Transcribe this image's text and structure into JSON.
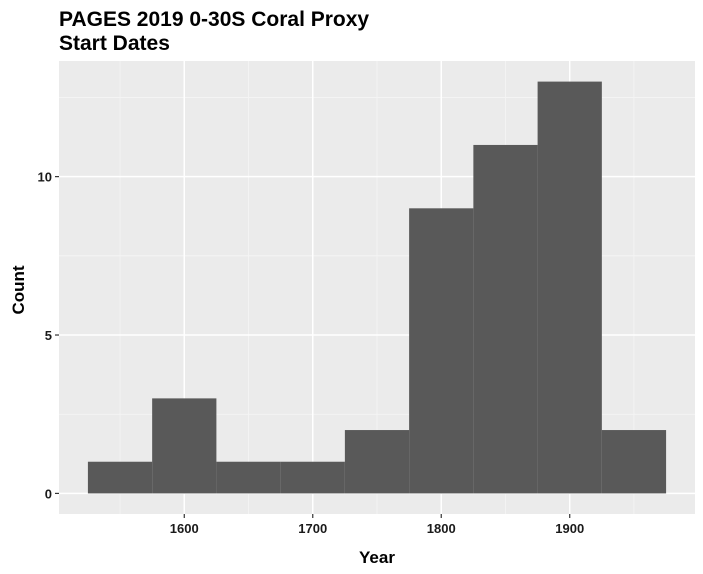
{
  "chart_data": {
    "type": "bar",
    "title": "PAGES 2019 0-30S Coral Proxy\nStart Dates",
    "xlabel": "Year",
    "ylabel": "Count",
    "bins": [
      {
        "start": 1525,
        "end": 1575,
        "count": 1
      },
      {
        "start": 1575,
        "end": 1625,
        "count": 3
      },
      {
        "start": 1625,
        "end": 1675,
        "count": 1
      },
      {
        "start": 1675,
        "end": 1725,
        "count": 1
      },
      {
        "start": 1725,
        "end": 1775,
        "count": 2
      },
      {
        "start": 1775,
        "end": 1825,
        "count": 9
      },
      {
        "start": 1825,
        "end": 1875,
        "count": 11
      },
      {
        "start": 1875,
        "end": 1925,
        "count": 13
      },
      {
        "start": 1925,
        "end": 1975,
        "count": 2
      }
    ],
    "x_ticks": [
      1600,
      1700,
      1800,
      1900
    ],
    "y_ticks": [
      0,
      5,
      10
    ],
    "xlim": [
      1502.5,
      1997.5
    ],
    "ylim": [
      -0.65,
      13.65
    ],
    "grid": true,
    "legend": "none",
    "colors": {
      "bar": "#595959",
      "panel": "#ebebeb",
      "grid_major": "#ffffff",
      "grid_minor": "#f5f5f5"
    }
  }
}
